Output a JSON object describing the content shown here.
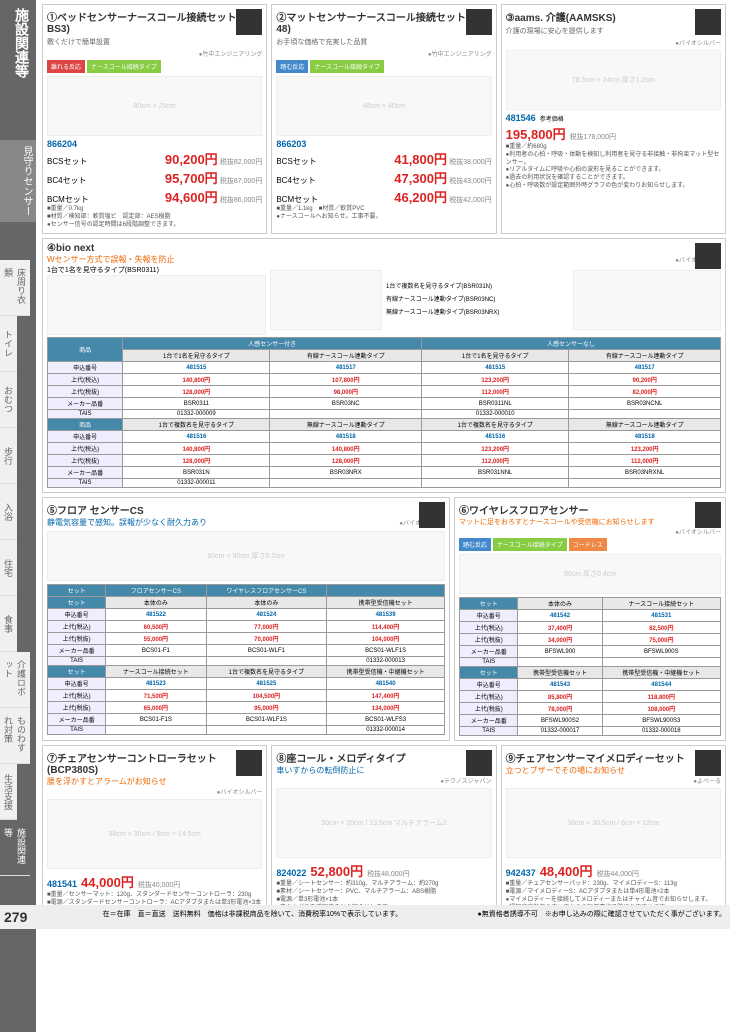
{
  "sidebar": {
    "main": "施設関連等",
    "sub": "見守りセンサー"
  },
  "navTabs": [
    "床周り衣類",
    "トイレ",
    "おむつ",
    "歩行",
    "入浴",
    "住宅",
    "食事",
    "介護ロボット",
    "ものわすれ対策",
    "生活支援",
    "施設関連等"
  ],
  "p1": {
    "num": "①",
    "title": "ベッドセンサーナースコール接続セット(BX-BS3)",
    "sub": "敷くだけで簡単設置",
    "tags": [
      "離れる反応",
      "ナースコール接続タイプ"
    ],
    "maker": "●竹中エンジニアリング",
    "code": "866204",
    "items": [
      {
        "set": "BCSセット",
        "price": "90,200",
        "note": "税抜82,000円"
      },
      {
        "set": "BC4セット",
        "price": "95,700",
        "note": "税抜87,000円"
      },
      {
        "set": "BCMセット",
        "price": "94,600",
        "note": "税抜86,000円"
      }
    ],
    "specs": [
      "■重量／0.7kg",
      "■材質／検知部：軟質塩ビ　認定部：AES樹脂",
      "●センサー信号の認定時間は6段階調整できます。"
    ]
  },
  "p2": {
    "num": "②",
    "title": "マットセンサーナースコール接続セット(MA-48)",
    "sub": "お手頃な価格で充実した品質",
    "tags": [
      "踏む反応",
      "ナースコール接続タイプ"
    ],
    "maker": "●竹中エンジニアリング",
    "code": "866203",
    "items": [
      {
        "set": "BCSセット",
        "price": "41,800",
        "note": "税抜38,000円"
      },
      {
        "set": "BC4セット",
        "price": "47,300",
        "note": "税抜43,000円"
      },
      {
        "set": "BCMセット",
        "price": "46,200",
        "note": "税抜42,000円"
      }
    ],
    "specs": [
      "■重量／1.1kg　■材質／軟質PVC",
      "●ナースコールへお知らせ。工事不要。"
    ]
  },
  "p3": {
    "num": "③",
    "title": "aams. 介護(AAMSKS)",
    "sub": "介護の現場に安心を提供します",
    "maker": "●バイオシルバー",
    "code": "481546",
    "refprice": "参考価格",
    "price": "195,800",
    "note": "税抜178,000円",
    "specs": [
      "■重量／約680g",
      "●利用者の心拍・呼吸・体動を検知し利用者を見守る非接触・非拘束マット型センサー。",
      "●リアルタイムに呼吸や心拍の波形を見ることができます。",
      "●過去の利用状況を確認することができます。",
      "●心拍・呼吸数が設定範囲外時グラフの色が変わりお知らせします。"
    ]
  },
  "p4": {
    "num": "④",
    "title": "bio next",
    "sub": "Wセンサー方式で誤報・失報を防止",
    "sub2": "1台で1名を見守るタイプ(BSR0311)",
    "maker": "●バイオシルバー",
    "types": [
      "1台で複数名を見守るタイプ(BSR031N)",
      "有線ナースコール連動タイプ(BSR03NC)",
      "無線ナースコール連動タイプ(BSR03NRX)"
    ],
    "table1": {
      "hdr1": "人感センサー付き",
      "hdr2": "人感センサーなし",
      "cols": [
        "1台で1名を見守るタイプ",
        "有線ナースコール連動タイプ",
        "1台で1名を見守るタイプ",
        "有線ナースコール連動タイプ"
      ],
      "rows": [
        {
          "lbl": "申込番号",
          "v": [
            "481515",
            "481517",
            "481515",
            "481517"
          ],
          "cls": "cell-blue"
        },
        {
          "lbl": "上代(税込)",
          "v": [
            "140,800円",
            "107,800円",
            "123,200円",
            "90,200円"
          ],
          "cls": "cell-red"
        },
        {
          "lbl": "上代(税抜)",
          "v": [
            "128,000円",
            "98,000円",
            "112,000円",
            "82,000円"
          ],
          "cls": "cell-red"
        },
        {
          "lbl": "メーカー品番",
          "v": [
            "BSR0311",
            "BSR03NC",
            "BSR0311NL",
            "BSR03NCNL"
          ]
        },
        {
          "lbl": "TAIS",
          "v": [
            "01332-000009",
            "",
            "01332-000010",
            ""
          ]
        }
      ],
      "rows2h": [
        "1台で複数名を見守るタイプ",
        "無線ナースコール連動タイプ",
        "1台で複数名を見守るタイプ",
        "無線ナースコール連動タイプ"
      ],
      "rows2": [
        {
          "lbl": "申込番号",
          "v": [
            "481516",
            "481518",
            "481516",
            "481518"
          ],
          "cls": "cell-blue"
        },
        {
          "lbl": "上代(税込)",
          "v": [
            "140,800円",
            "140,800円",
            "123,200円",
            "123,200円"
          ],
          "cls": "cell-red"
        },
        {
          "lbl": "上代(税抜)",
          "v": [
            "128,000円",
            "128,000円",
            "112,000円",
            "112,000円"
          ],
          "cls": "cell-red"
        },
        {
          "lbl": "メーカー品番",
          "v": [
            "BSR031N",
            "BSR03NRX",
            "BSR031NNL",
            "BSR03NRXNL"
          ]
        },
        {
          "lbl": "TAIS",
          "v": [
            "01332-000011",
            "",
            "",
            ""
          ]
        }
      ]
    }
  },
  "p5": {
    "num": "⑤",
    "title": "フロア センサーCS",
    "sub": "静電気容量で感知。誤報が少なく耐久力あり",
    "maker": "●バイオシルバー",
    "table": {
      "hdr": [
        "フロアセンサーCS",
        "ワイヤレスフロアセンサーCS",
        ""
      ],
      "cols": [
        "本体のみ",
        "本体のみ",
        "携帯型受信機セット"
      ],
      "rows": [
        {
          "lbl": "申込番号",
          "v": [
            "481522",
            "481524",
            "481539"
          ],
          "cls": "cell-blue"
        },
        {
          "lbl": "上代(税込)",
          "v": [
            "60,500円",
            "77,000円",
            "114,400円"
          ],
          "cls": "cell-red"
        },
        {
          "lbl": "上代(税抜)",
          "v": [
            "55,000円",
            "70,000円",
            "104,000円"
          ],
          "cls": "cell-red"
        },
        {
          "lbl": "メーカー品番",
          "v": [
            "BCS01-F1",
            "BCS01-WLF1",
            "BCS01-WLF1S"
          ]
        },
        {
          "lbl": "TAIS",
          "v": [
            "",
            "",
            "01332-000013"
          ]
        }
      ],
      "cols2": [
        "ナースコール接続セット",
        "1台で複数名を見守るタイプ",
        "携帯型受信機・中継機セット"
      ],
      "rows2": [
        {
          "lbl": "申込番号",
          "v": [
            "481523",
            "481525",
            "481540"
          ],
          "cls": "cell-blue"
        },
        {
          "lbl": "上代(税込)",
          "v": [
            "71,500円",
            "104,500円",
            "147,400円"
          ],
          "cls": "cell-red"
        },
        {
          "lbl": "上代(税抜)",
          "v": [
            "65,000円",
            "95,000円",
            "134,000円"
          ],
          "cls": "cell-red"
        },
        {
          "lbl": "メーカー品番",
          "v": [
            "BCS01-F1S",
            "BCS01-WLF1S",
            "BCS01-WLFS3"
          ]
        },
        {
          "lbl": "TAIS",
          "v": [
            "",
            "",
            "01332-000014"
          ]
        }
      ]
    }
  },
  "p6": {
    "num": "⑥",
    "title": "ワイヤレスフロアセンサー",
    "sub": "マットに足をおろすとナースコールや受信機にお知らせします",
    "tags": [
      "踏む反応",
      "ナースコール接続タイプ",
      "コードレス"
    ],
    "maker": "●バイオシルバー",
    "table": {
      "cols": [
        "本体のみ",
        "ナースコール接続セット"
      ],
      "rows": [
        {
          "lbl": "申込番号",
          "v": [
            "481542",
            "481531"
          ],
          "cls": "cell-blue"
        },
        {
          "lbl": "上代(税込)",
          "v": [
            "37,400円",
            "82,500円"
          ],
          "cls": "cell-red"
        },
        {
          "lbl": "上代(税抜)",
          "v": [
            "34,000円",
            "75,000円"
          ],
          "cls": "cell-red"
        },
        {
          "lbl": "メーカー品番",
          "v": [
            "BFSWL900",
            "BFSWL900S"
          ]
        },
        {
          "lbl": "TAIS",
          "v": [
            "",
            ""
          ]
        }
      ],
      "cols2": [
        "携帯型受信機セット",
        "携帯型受信機・中継機セット"
      ],
      "rows2": [
        {
          "lbl": "申込番号",
          "v": [
            "481543",
            "481544"
          ],
          "cls": "cell-blue"
        },
        {
          "lbl": "上代(税込)",
          "v": [
            "85,800円",
            "118,800円"
          ],
          "cls": "cell-red"
        },
        {
          "lbl": "上代(税抜)",
          "v": [
            "78,000円",
            "108,000円"
          ],
          "cls": "cell-red"
        },
        {
          "lbl": "メーカー品番",
          "v": [
            "BFSWL900S2",
            "BFSWL900S3"
          ]
        },
        {
          "lbl": "TAIS",
          "v": [
            "01332-000017",
            "01332-000018"
          ]
        }
      ]
    }
  },
  "p7": {
    "num": "⑦",
    "title": "チェアセンサーコントローラセット(BCP380S)",
    "sub": "腰を浮かすとアラームがお知らせ",
    "maker": "●バイオシルバー",
    "code": "481541",
    "price": "44,000",
    "note": "税抜40,000円",
    "specs": [
      "■重量／センサーマット：120g、スタンダードセンサーコントローラ：230g",
      "■電源／スタンダードセンサーコントローラ：ACアダプタまたは単3形電池×3本"
    ]
  },
  "p8": {
    "num": "⑧",
    "title": "座コール・メロディタイプ",
    "sub": "車いすからの転倒防止に",
    "maker": "●テクノスジャパン",
    "code": "824022",
    "price": "52,800",
    "note": "税抜48,000円",
    "specs": [
      "■重量／シートセンサー：約310g、マルチアラーム：約270g",
      "■素材／シートセンサー：PVC、マルチアラーム：ABS樹脂",
      "■電源／単3形電池×1本",
      "●立ち上がりを感知するとお知らせします。",
      "●車は3種類のメロディと、大音量から音量0まで選択可能。"
    ]
  },
  "p9": {
    "num": "⑨",
    "title": "チェアセンサーマイメロディーセット",
    "sub": "立つとブザーでその場にお知らせ",
    "maker": "●よべーる",
    "code": "942437",
    "price": "48,400",
    "note": "税抜44,000円",
    "specs": [
      "■重量／チェアセンサーパッド：230g、マイメロディーS：113g",
      "■電源／マイメロディーS：ACアダプタまたは単4形電池×2本",
      "●マイメロディーを接続してメロディーまたはチャイム音でお知らせします。",
      "●認知症高齢者の車いすからの転倒事故予防におすすめです。"
    ]
  },
  "footer": {
    "page": "279",
    "notes": "在＝在庫　直＝直送　送料無料　価格は非課税商品を除いて、消費税率10%で表示しています。",
    "right": "●無資格者誘導不可　※お申し込みの際に確認させていただく事がございます。"
  }
}
